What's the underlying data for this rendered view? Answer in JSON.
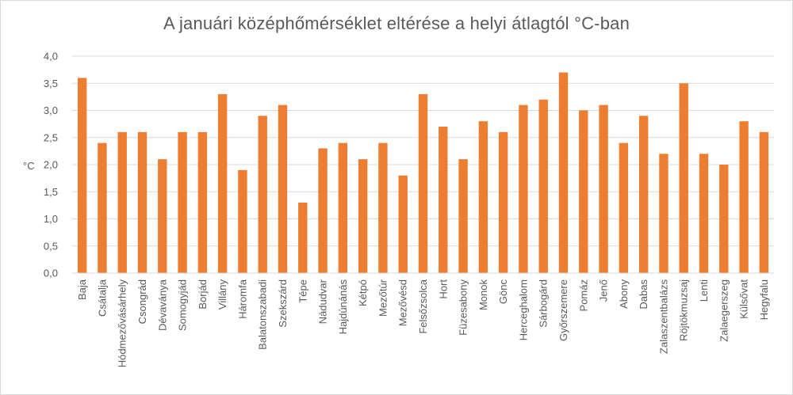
{
  "chart_data": {
    "type": "bar",
    "title": "A januári középhőmérséklet eltérése a helyi átlagtól  °C-ban",
    "ylabel": "°C",
    "xlabel": "",
    "ylim": [
      0,
      4
    ],
    "yticks": [
      "0,0",
      "0,5",
      "1,0",
      "1,5",
      "2,0",
      "2,5",
      "3,0",
      "3,5",
      "4,0"
    ],
    "grid": true,
    "legend": "none",
    "bar_color": "#ED7D31",
    "categories": [
      "Baja",
      "Csátalja",
      "Hódmezővásárhely",
      "Csongrád",
      "Dévaványa",
      "Somogyjád",
      "Borjád",
      "Villány",
      "Háromfa",
      "Balatonszabadi",
      "Szekszárd",
      "Tépe",
      "Nádudvar",
      "Hajdúnánás",
      "Kétpó",
      "Mezőtúr",
      "Mezővésd",
      "Felsőzsolca",
      "Hort",
      "Füzesabony",
      "Monok",
      "Gönc",
      "Herceghalom",
      "Sárbogárd",
      "Győrszemere",
      "Pomáz",
      "Jenő",
      "Abony",
      "Dabas",
      "Zalaszentbalázs",
      "Röjtökmuzsaj",
      "Lenti",
      "Zalaegerszeg",
      "Külsővat",
      "Hegyfalu"
    ],
    "values": [
      3.6,
      2.4,
      2.6,
      2.6,
      2.1,
      2.6,
      2.6,
      3.3,
      1.9,
      2.9,
      3.1,
      1.3,
      2.3,
      2.4,
      2.1,
      2.4,
      1.8,
      3.3,
      2.7,
      2.1,
      2.8,
      2.6,
      3.1,
      3.2,
      3.7,
      3.0,
      3.1,
      2.4,
      2.9,
      2.2,
      3.5,
      2.2,
      2.0,
      2.8,
      2.6
    ]
  }
}
